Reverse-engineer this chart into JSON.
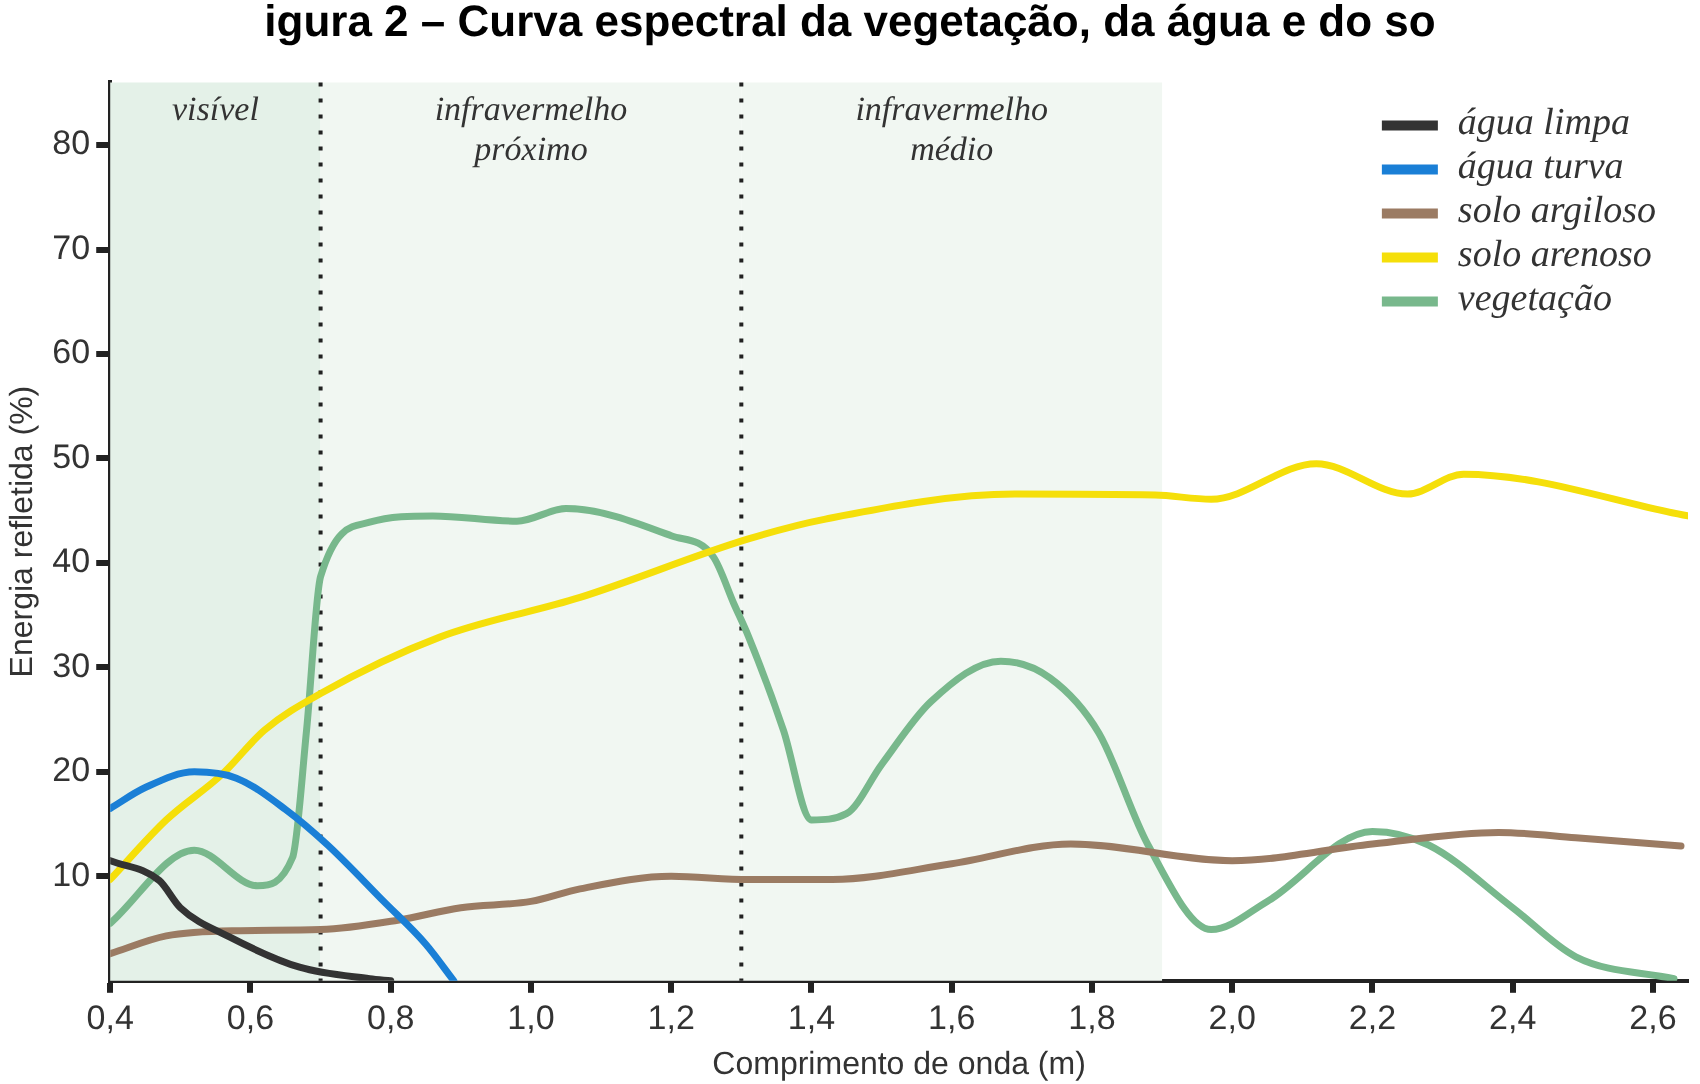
{
  "chart_data": {
    "type": "line",
    "title": "igura 2 – Curva espectral da vegetação, da água e do so",
    "xlabel": "Comprimento de onda (m)",
    "ylabel": "Energia refletida (%)",
    "xlim": [
      0.4,
      2.65
    ],
    "ylim": [
      0,
      86
    ],
    "xticks": [
      {
        "value": 0.4,
        "label": "0,4"
      },
      {
        "value": 0.6,
        "label": "0,6"
      },
      {
        "value": 0.8,
        "label": "0,8"
      },
      {
        "value": 1.0,
        "label": "1,0"
      },
      {
        "value": 1.2,
        "label": "1,2"
      },
      {
        "value": 1.4,
        "label": "1,4"
      },
      {
        "value": 1.6,
        "label": "1,6"
      },
      {
        "value": 1.8,
        "label": "1,8"
      },
      {
        "value": 2.0,
        "label": "2,0"
      },
      {
        "value": 2.2,
        "label": "2,2"
      },
      {
        "value": 2.4,
        "label": "2,4"
      },
      {
        "value": 2.6,
        "label": "2,6"
      }
    ],
    "yticks": [
      10,
      20,
      30,
      40,
      50,
      60,
      70,
      80
    ],
    "grid": false,
    "legend": "top right",
    "marker": "none",
    "line_style": "solid",
    "ref_lines": [
      {
        "axis": "x",
        "value": 0.7,
        "color": "#222222",
        "line_style": "dotted"
      },
      {
        "axis": "x",
        "value": 1.3,
        "color": "#222222",
        "line_style": "dotted"
      }
    ],
    "bands": [
      {
        "axis": "x",
        "from": 0.4,
        "to": 0.7,
        "label": "visível",
        "color": "#e4f1e8"
      },
      {
        "axis": "x",
        "from": 0.7,
        "to": 1.3,
        "label": "infravermelho próximo",
        "color": "#f1f7f2"
      },
      {
        "axis": "x",
        "from": 1.3,
        "to": 1.9,
        "label": "infravermelho médio",
        "color": "#f1f7f2"
      }
    ],
    "series": [
      {
        "name": "água limpa",
        "color": "#333333",
        "x": [
          0.4,
          0.47,
          0.5,
          0.57,
          0.67,
          0.77,
          0.8
        ],
        "values": [
          11.5,
          9.6,
          7,
          4.2,
          1.3,
          0.2,
          0
        ]
      },
      {
        "name": "água turva",
        "color": "#1a7fd6",
        "x": [
          0.4,
          0.45,
          0.52,
          0.58,
          0.65,
          0.71,
          0.79,
          0.85,
          0.89
        ],
        "values": [
          16.5,
          18.5,
          20,
          19.4,
          16.4,
          13,
          7.6,
          3.5,
          0
        ]
      },
      {
        "name": "solo argiloso",
        "color": "#9b7b63",
        "x": [
          0.4,
          0.48,
          0.58,
          0.7,
          0.81,
          0.9,
          1.0,
          1.07,
          1.2,
          1.31,
          1.43,
          1.6,
          1.77,
          2.0,
          2.2,
          2.38,
          2.49,
          2.64
        ],
        "values": [
          2.6,
          4.3,
          4.8,
          4.9,
          5.8,
          7,
          7.6,
          8.8,
          10,
          9.7,
          9.7,
          11.2,
          13.1,
          11.5,
          13.1,
          14.2,
          13.7,
          12.9
        ]
      },
      {
        "name": "solo arenoso",
        "color": "#f5df0a",
        "x": [
          0.4,
          0.48,
          0.56,
          0.62,
          0.7,
          0.87,
          1.07,
          1.31,
          1.42,
          1.69,
          1.89,
          1.97,
          2.12,
          2.25,
          2.33,
          2.65
        ],
        "values": [
          9.7,
          15.4,
          19.8,
          24,
          27.5,
          32.9,
          36.7,
          42.3,
          44.2,
          46.6,
          46.5,
          46.1,
          49.5,
          46.6,
          48.5,
          44.5
        ]
      },
      {
        "name": "vegetação",
        "color": "#78b88c",
        "x": [
          0.4,
          0.52,
          0.61,
          0.66,
          0.68,
          0.7,
          0.77,
          0.86,
          0.98,
          1.05,
          1.2,
          1.26,
          1.29,
          1.31,
          1.36,
          1.4,
          1.45,
          1.5,
          1.57,
          1.67,
          1.74,
          1.81,
          1.88,
          1.97,
          2.05,
          2.2,
          2.28,
          2.4,
          2.49,
          2.63
        ],
        "values": [
          5.5,
          12.5,
          9.1,
          11.8,
          24,
          38.7,
          43.9,
          44.5,
          44,
          45.2,
          42.6,
          40.6,
          36,
          33,
          24,
          15.4,
          16,
          20.7,
          26.7,
          30.6,
          29,
          23.7,
          13,
          4.9,
          7.6,
          14.3,
          13,
          7,
          2.3,
          0.2
        ]
      }
    ]
  }
}
